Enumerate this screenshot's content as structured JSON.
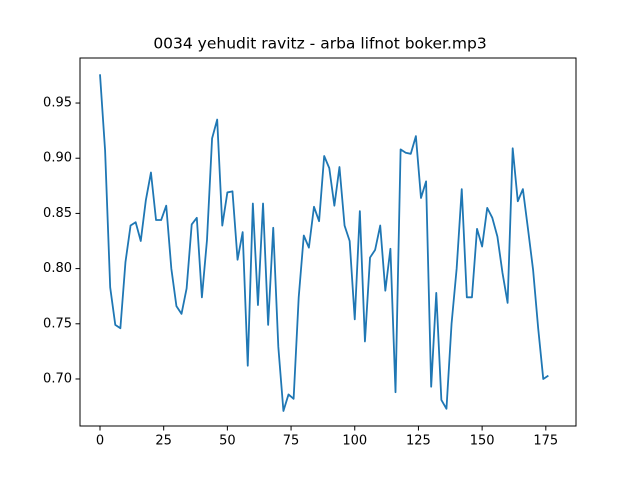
{
  "chart_data": {
    "type": "line",
    "title": "0034 yehudit ravitz - arba lifnot boker.mp3",
    "x": [
      0,
      2,
      4,
      6,
      8,
      10,
      12,
      14,
      16,
      18,
      20,
      22,
      24,
      26,
      28,
      30,
      32,
      34,
      36,
      38,
      40,
      42,
      44,
      46,
      48,
      50,
      52,
      54,
      56,
      58,
      60,
      62,
      64,
      66,
      68,
      70,
      72,
      74,
      76,
      78,
      80,
      82,
      84,
      86,
      88,
      90,
      92,
      94,
      96,
      98,
      100,
      102,
      104,
      106,
      108,
      110,
      112,
      114,
      116,
      118,
      120,
      122,
      124,
      126,
      128,
      130,
      132,
      134,
      136,
      138,
      140,
      142,
      144,
      146,
      148,
      150,
      152,
      154,
      156,
      158,
      160,
      162,
      164,
      166,
      168,
      170,
      172,
      174,
      176
    ],
    "series": [
      {
        "color": "#1f77b4",
        "values": [
          0.976,
          0.907,
          0.783,
          0.749,
          0.746,
          0.806,
          0.839,
          0.842,
          0.825,
          0.862,
          0.887,
          0.844,
          0.844,
          0.857,
          0.8,
          0.766,
          0.759,
          0.782,
          0.84,
          0.846,
          0.774,
          0.826,
          0.918,
          0.935,
          0.839,
          0.869,
          0.87,
          0.808,
          0.833,
          0.712,
          0.859,
          0.767,
          0.859,
          0.749,
          0.837,
          0.729,
          0.671,
          0.686,
          0.682,
          0.774,
          0.83,
          0.819,
          0.856,
          0.843,
          0.902,
          0.891,
          0.857,
          0.892,
          0.839,
          0.825,
          0.754,
          0.852,
          0.734,
          0.81,
          0.817,
          0.839,
          0.78,
          0.818,
          0.688,
          0.908,
          0.905,
          0.904,
          0.92,
          0.864,
          0.879,
          0.693,
          0.778,
          0.681,
          0.673,
          0.75,
          0.8,
          0.872,
          0.774,
          0.774,
          0.836,
          0.82,
          0.855,
          0.846,
          0.829,
          0.796,
          0.769,
          0.909,
          0.861,
          0.872,
          0.836,
          0.799,
          0.746,
          0.7,
          0.703
        ]
      }
    ],
    "xlim": [
      -7.85,
      186.85
    ],
    "xticks": [
      0,
      25,
      50,
      75,
      100,
      125,
      150,
      175
    ],
    "ylim": [
      0.6574,
      0.9908
    ],
    "yticks": [
      {
        "value": 0.7,
        "label": "0.70"
      },
      0.75,
      {
        "value": 0.8,
        "label": "0.80"
      },
      0.85,
      {
        "value": 0.9,
        "label": "0.90"
      },
      0.95
    ]
  }
}
